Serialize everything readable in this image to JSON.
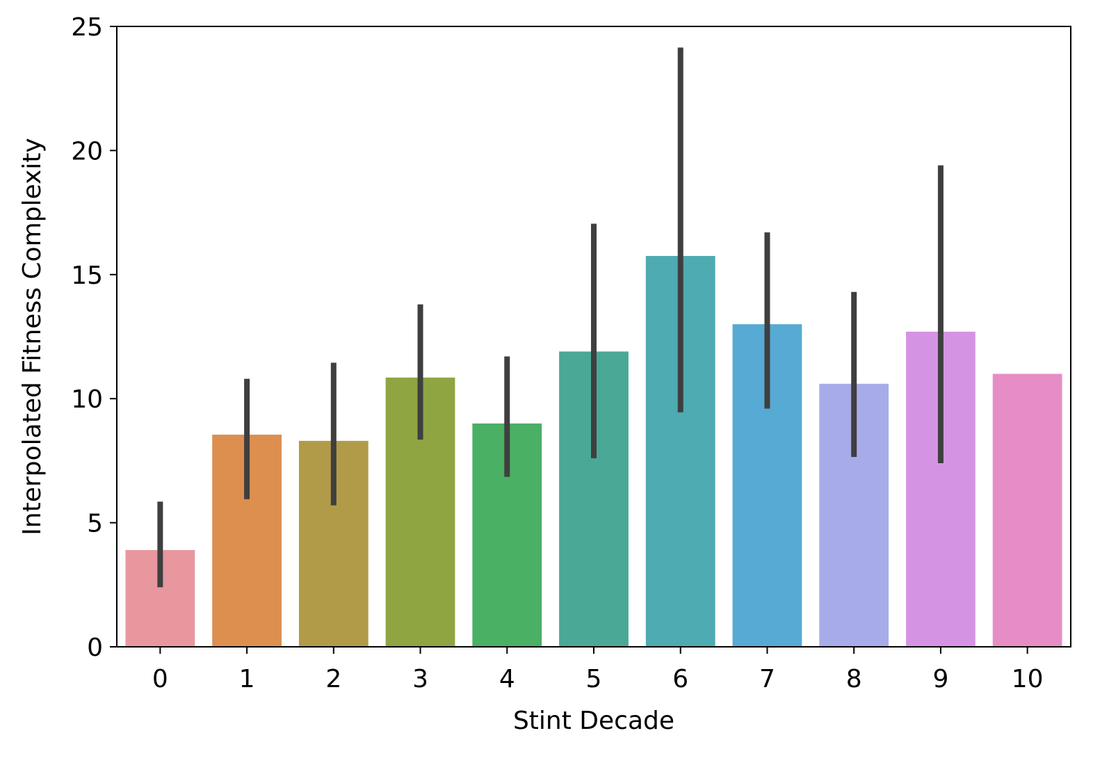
{
  "chart_data": {
    "type": "bar",
    "title": "",
    "xlabel": "Stint Decade",
    "ylabel": "Interpolated Fitness Complexity",
    "categories": [
      "0",
      "1",
      "2",
      "3",
      "4",
      "5",
      "6",
      "7",
      "8",
      "9",
      "10"
    ],
    "values": [
      3.9,
      8.55,
      8.3,
      10.85,
      9.0,
      11.9,
      15.75,
      13.0,
      10.6,
      12.7,
      11.0
    ],
    "error_bars": [
      [
        2.4,
        5.85
      ],
      [
        5.95,
        10.8
      ],
      [
        5.7,
        11.45
      ],
      [
        8.35,
        13.8
      ],
      [
        6.85,
        11.7
      ],
      [
        7.6,
        17.05
      ],
      [
        9.45,
        24.15
      ],
      [
        9.6,
        16.7
      ],
      [
        7.65,
        14.3
      ],
      [
        7.4,
        19.4
      ],
      null
    ],
    "ylim": [
      0,
      25
    ],
    "yticks": [
      "0",
      "5",
      "10",
      "15",
      "20",
      "25"
    ],
    "grid": false,
    "legend": "none",
    "colors": [
      "#e8979f",
      "#dc8f4f",
      "#b29b48",
      "#8fa542",
      "#49b064",
      "#4aa896",
      "#4eabb1",
      "#56aad3",
      "#a7abe8",
      "#d594e3",
      "#e68dc6"
    ],
    "errorbar_color": "#3f3f3f"
  }
}
